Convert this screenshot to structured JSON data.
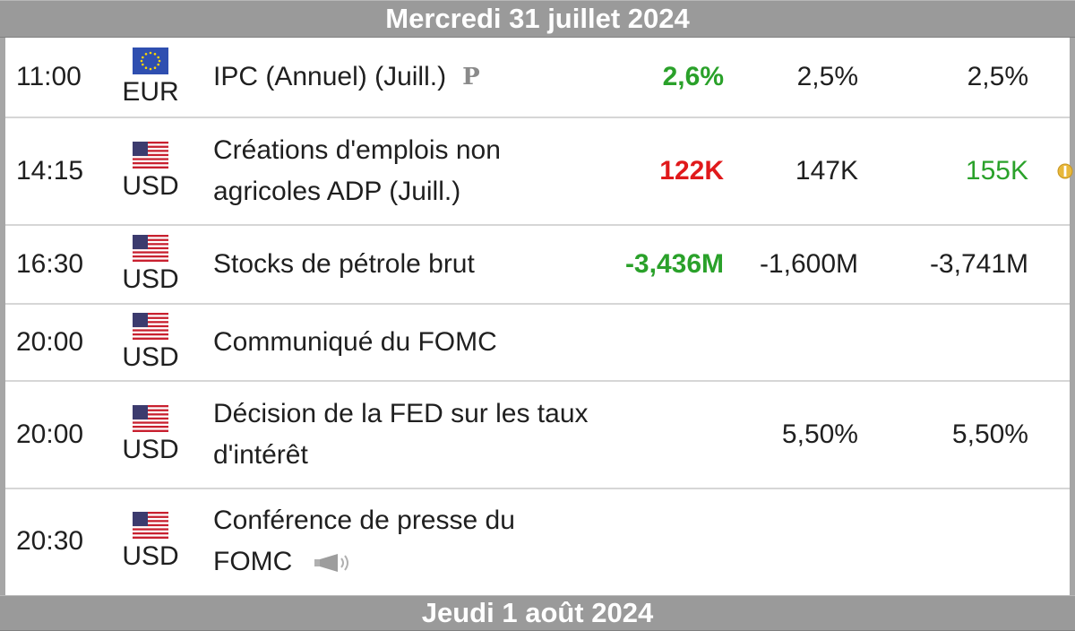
{
  "days": [
    {
      "label": "Mercredi 31 juillet 2024"
    },
    {
      "label": "Jeudi 1 août 2024"
    }
  ],
  "events": [
    {
      "time": "11:00",
      "currency": "EUR",
      "flag": "eu-flag-icon",
      "event": "IPC (Annuel) (Juill.)",
      "badge": "P",
      "actual": "2,6%",
      "actual_color": "#2aa12a",
      "forecast": "2,5%",
      "previous": "2,5%",
      "previous_color": "#1f1f1f"
    },
    {
      "time": "14:15",
      "currency": "USD",
      "flag": "us-flag-icon",
      "event": "Créations d'emplois non agricoles ADP (Juill.)",
      "actual": "122K",
      "actual_color": "#e0191b",
      "forecast": "147K",
      "previous": "155K",
      "previous_color": "#2aa12a",
      "revised": true
    },
    {
      "time": "16:30",
      "currency": "USD",
      "flag": "us-flag-icon",
      "event": "Stocks de pétrole brut",
      "actual": "-3,436M",
      "actual_color": "#2aa12a",
      "forecast": "-1,600M",
      "previous": "-3,741M",
      "previous_color": "#1f1f1f"
    },
    {
      "time": "20:00",
      "currency": "USD",
      "flag": "us-flag-icon",
      "event": "Communiqué du FOMC",
      "actual": "",
      "forecast": "",
      "previous": ""
    },
    {
      "time": "20:00",
      "currency": "USD",
      "flag": "us-flag-icon",
      "event": "Décision de la FED sur les taux d'intérêt",
      "actual": "",
      "forecast": "5,50%",
      "previous": "5,50%",
      "previous_color": "#1f1f1f"
    },
    {
      "time": "20:30",
      "currency": "USD",
      "flag": "us-flag-icon",
      "event": "Conférence de presse du FOMC",
      "speech": true,
      "actual": "",
      "forecast": "",
      "previous": ""
    }
  ],
  "colors": {
    "header_bg": "#9a9a9a",
    "row_divider": "#d6d6d6",
    "positive": "#2aa12a",
    "negative": "#e0191b"
  }
}
